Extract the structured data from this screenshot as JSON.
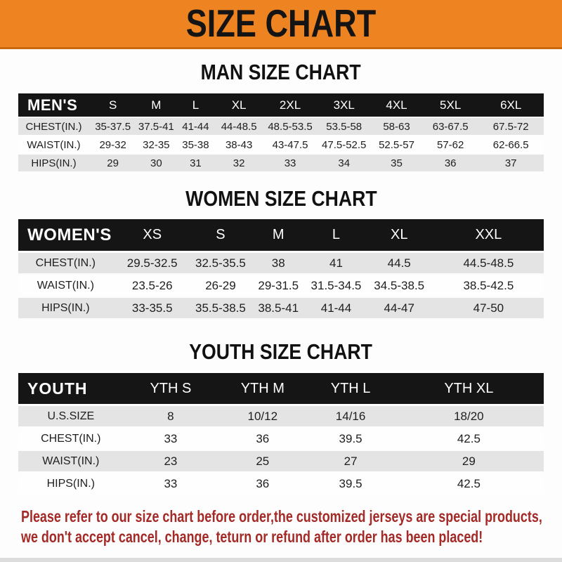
{
  "banner": {
    "title": "SIZE CHART"
  },
  "colors": {
    "banner_orange": "#ee8421",
    "banner_border": "#c8690e",
    "table_header_black": "#151515",
    "row_gray": "#e4e4e4",
    "row_white": "#fefefe",
    "footer_red": "#a32a26"
  },
  "sections": [
    {
      "title": "MAN SIZE CHART",
      "header_label": "MEN'S",
      "columns": [
        "S",
        "M",
        "L",
        "XL",
        "2XL",
        "3XL",
        "4XL",
        "5XL",
        "6XL"
      ],
      "rows": [
        {
          "label": "CHEST(IN.)",
          "values": [
            "35-37.5",
            "37.5-41",
            "41-44",
            "44-48.5",
            "48.5-53.5",
            "53.5-58",
            "58-63",
            "63-67.5",
            "67.5-72"
          ]
        },
        {
          "label": "WAIST(IN.)",
          "values": [
            "29-32",
            "32-35",
            "35-38",
            "38-43",
            "43-47.5",
            "47.5-52.5",
            "52.5-57",
            "57-62",
            "62-66.5"
          ]
        },
        {
          "label": "HIPS(IN.)",
          "values": [
            "29",
            "30",
            "31",
            "32",
            "33",
            "34",
            "35",
            "36",
            "37"
          ]
        }
      ]
    },
    {
      "title": "WOMEN SIZE CHART",
      "header_label": "WOMEN'S",
      "columns": [
        "XS",
        "S",
        "M",
        "L",
        "XL",
        "XXL"
      ],
      "rows": [
        {
          "label": "CHEST(IN.)",
          "values": [
            "29.5-32.5",
            "32.5-35.5",
            "38",
            "41",
            "44.5",
            "44.5-48.5"
          ]
        },
        {
          "label": "WAIST(IN.)",
          "values": [
            "23.5-26",
            "26-29",
            "29-31.5",
            "31.5-34.5",
            "34.5-38.5",
            "38.5-42.5"
          ]
        },
        {
          "label": "HIPS(IN.)",
          "values": [
            "33-35.5",
            "35.5-38.5",
            "38.5-41",
            "41-44",
            "44-47",
            "47-50"
          ]
        }
      ]
    },
    {
      "title": "YOUTH SIZE CHART",
      "header_label": "YOUTH",
      "columns": [
        "YTH S",
        "YTH M",
        "YTH L",
        "YTH XL"
      ],
      "rows": [
        {
          "label": "U.S.SIZE",
          "values": [
            "8",
            "10/12",
            "14/16",
            "18/20"
          ]
        },
        {
          "label": "CHEST(IN.)",
          "values": [
            "33",
            "36",
            "39.5",
            "42.5"
          ]
        },
        {
          "label": "WAIST(IN.)",
          "values": [
            "23",
            "25",
            "27",
            "29"
          ]
        },
        {
          "label": "HIPS(IN.)",
          "values": [
            "33",
            "36",
            "39.5",
            "42.5"
          ]
        }
      ]
    }
  ],
  "footer": {
    "line1": "Please refer to our size chart before order,the customized jerseys are special products,",
    "line2": "we don't accept cancel, change, teturn or refund after order has been placed!"
  }
}
